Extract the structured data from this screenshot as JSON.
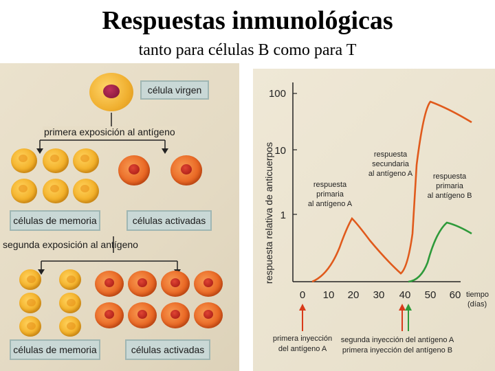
{
  "title": "Respuestas inmunológicas",
  "subtitle": "tanto para células B como para T",
  "left_panel": {
    "naive_label": "célula virgen",
    "first_exposure": "primera exposición al antígeno",
    "memory_label_1": "células de memoria",
    "activated_label_1": "células activadas",
    "second_exposure": "segunda exposición al antígeno",
    "memory_label_2": "células de memoria",
    "activated_label_2": "células activadas"
  },
  "graph": {
    "ylabel": "respuesta relativa de anticuerpos",
    "y_ticks": [
      "100",
      "10",
      "1"
    ],
    "x_ticks": [
      "0",
      "10",
      "20",
      "30",
      "40",
      "50",
      "60"
    ],
    "xlabel_line1": "tiempo",
    "xlabel_line2": "(días)",
    "ann_primary_A": [
      "respuesta",
      "primaria",
      "al antígeno A"
    ],
    "ann_secondary_A": [
      "respuesta",
      "secundaria",
      "al antígeno A"
    ],
    "ann_primary_B": [
      "respuesta",
      "primaria",
      "al antígeno B"
    ],
    "injection_1": [
      "primera inyección",
      "del antígeno A"
    ],
    "injection_2": [
      "segunda inyección del antígeno A",
      "primera inyección del antígeno B"
    ],
    "colors": {
      "antigen_A": "#e05a1c",
      "antigen_B": "#2e9a3a",
      "axis": "#222222"
    }
  }
}
